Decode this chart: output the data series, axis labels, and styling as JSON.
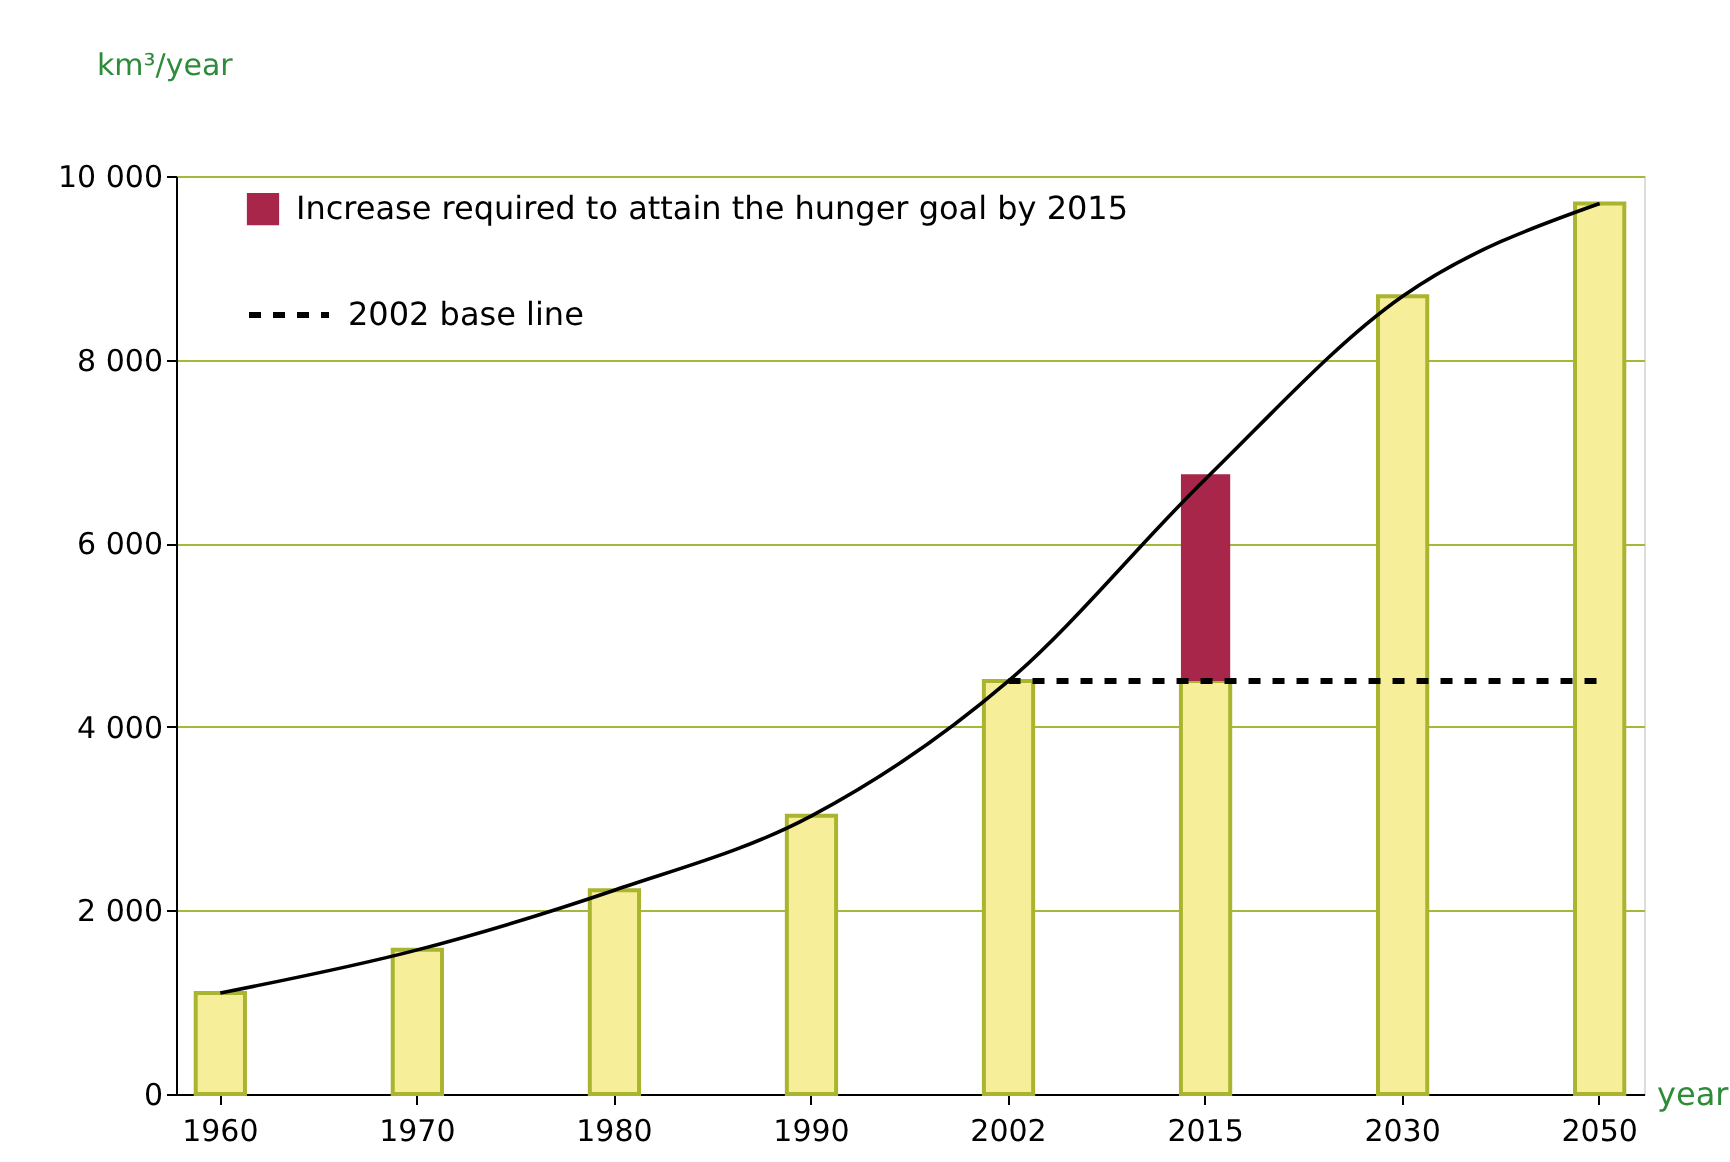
{
  "chart_data": {
    "type": "bar",
    "stacked": true,
    "xlabel": "year",
    "ylabel": "km³/year",
    "categories": [
      "1960",
      "1970",
      "1980",
      "1990",
      "2002",
      "2015",
      "2030",
      "2050"
    ],
    "series": [
      {
        "color": "#f7ee9a",
        "values": [
          1100,
          1570,
          2220,
          3030,
          4500,
          4500,
          8690,
          9700
        ]
      },
      {
        "name": "Increase required to attain the hunger goal by 2015",
        "color": "#a8264a",
        "values": [
          null,
          null,
          null,
          null,
          null,
          2250,
          null,
          null
        ]
      },
      {
        "type": "line",
        "color": "#000000",
        "values": [
          1100,
          1570,
          2220,
          3030,
          4500,
          6700,
          8690,
          9700
        ]
      },
      {
        "type": "line",
        "name": "2002 base line",
        "line_style": "dashed",
        "color": "#000000",
        "values": [
          null,
          null,
          null,
          null,
          4500,
          4500,
          4500,
          4500
        ]
      }
    ],
    "ylim": [
      0,
      10000
    ],
    "yticks": [
      0,
      {
        "value": 2000,
        "label": "2 000"
      },
      {
        "value": 4000,
        "label": "4 000"
      },
      {
        "value": 6000,
        "label": "6 000"
      },
      {
        "value": 8000,
        "label": "8 000"
      },
      {
        "value": 10000,
        "label": "10 000"
      }
    ],
    "grid": "y",
    "legend": "top left"
  }
}
